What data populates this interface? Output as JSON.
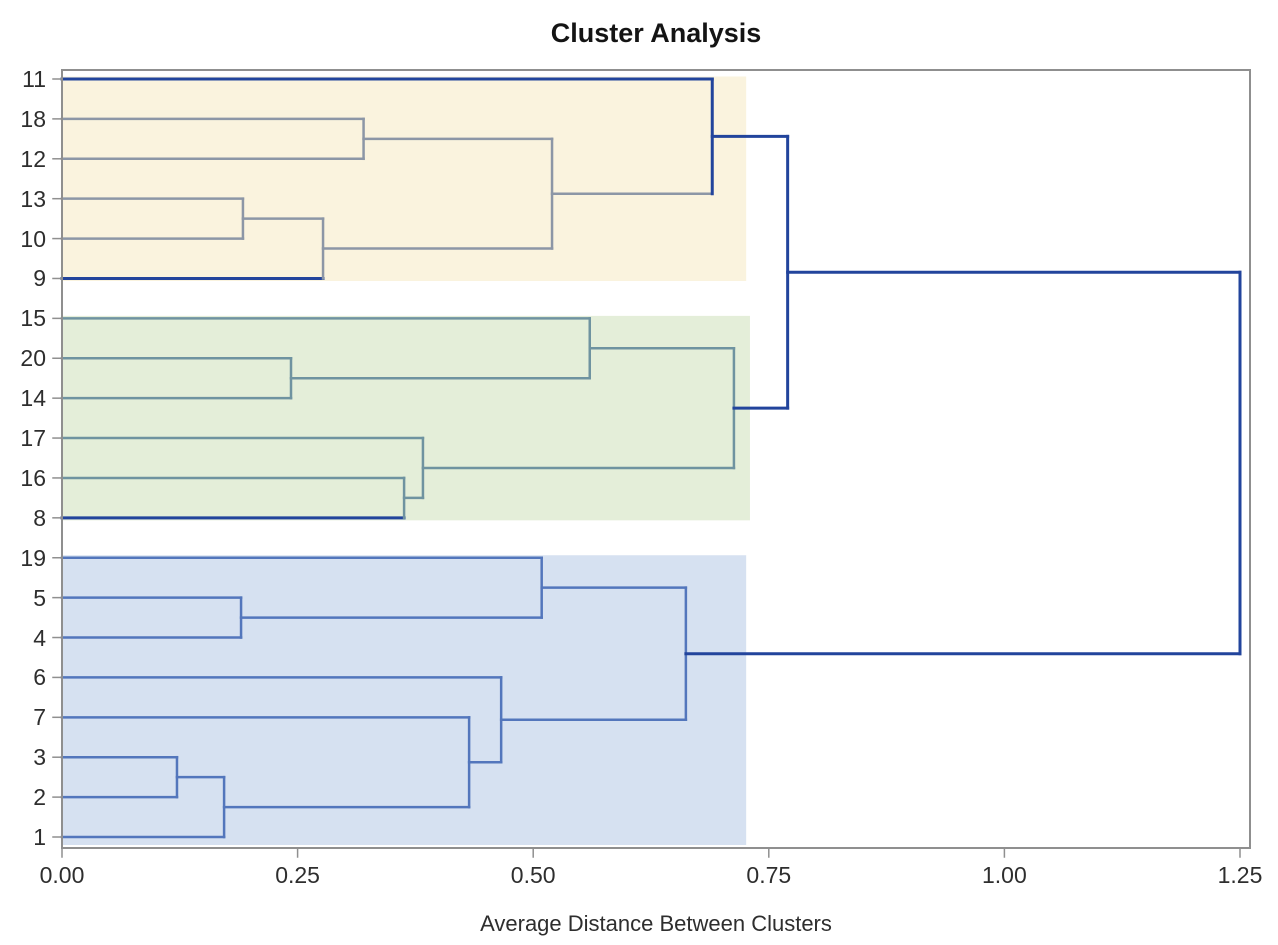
{
  "chart_data": {
    "type": "dendrogram",
    "title": "Cluster Analysis",
    "xlabel": "Average Distance Between Clusters",
    "x_axis": {
      "tick_labels": [
        "0.00",
        "0.25",
        "0.50",
        "0.75",
        "1.00",
        "1.25"
      ],
      "tick_values": [
        0,
        0.25,
        0.5,
        0.75,
        1.0,
        1.25
      ],
      "range": [
        0,
        1.25
      ],
      "grid": false
    },
    "leaf_order": [
      "11",
      "18",
      "12",
      "13",
      "10",
      "9",
      "15",
      "20",
      "14",
      "17",
      "16",
      "8",
      "19",
      "5",
      "4",
      "6",
      "7",
      "3",
      "2",
      "1"
    ],
    "leaf_line_colors": {
      "11": "navy",
      "18": "gray",
      "12": "gray",
      "13": "gray",
      "10": "gray",
      "9": "navy",
      "15": "teal",
      "20": "teal",
      "14": "teal",
      "17": "teal",
      "16": "teal",
      "8": "navy",
      "19": "blue",
      "5": "blue",
      "4": "blue",
      "6": "blue",
      "7": "blue",
      "3": "blue",
      "2": "blue",
      "1": "blue"
    },
    "merges": [
      {
        "id": "A",
        "children": [
          "13",
          "10"
        ],
        "distance": 0.192,
        "line": "gray",
        "out": "gray"
      },
      {
        "id": "B",
        "children": [
          "A",
          "9"
        ],
        "distance": 0.277,
        "line": "gray",
        "out": "gray"
      },
      {
        "id": "C",
        "children": [
          "18",
          "12"
        ],
        "distance": 0.32,
        "line": "gray",
        "out": "gray"
      },
      {
        "id": "D",
        "children": [
          "C",
          "B"
        ],
        "distance": 0.52,
        "line": "gray",
        "out": "gray"
      },
      {
        "id": "E",
        "children": [
          "11",
          "D"
        ],
        "distance": 0.69,
        "line": "navy",
        "out": "navy"
      },
      {
        "id": "F",
        "children": [
          "20",
          "14"
        ],
        "distance": 0.243,
        "line": "teal",
        "out": "teal"
      },
      {
        "id": "G",
        "children": [
          "16",
          "8"
        ],
        "distance": 0.363,
        "line": "teal",
        "out": "teal"
      },
      {
        "id": "H",
        "children": [
          "17",
          "G"
        ],
        "distance": 0.383,
        "line": "teal",
        "out": "teal"
      },
      {
        "id": "I",
        "children": [
          "15",
          "F"
        ],
        "distance": 0.56,
        "line": "teal",
        "out": "teal"
      },
      {
        "id": "J",
        "children": [
          "I",
          "H"
        ],
        "distance": 0.713,
        "line": "teal",
        "out": "navy"
      },
      {
        "id": "K",
        "children": [
          "3",
          "2"
        ],
        "distance": 0.122,
        "line": "blue",
        "out": "blue"
      },
      {
        "id": "L",
        "children": [
          "K",
          "1"
        ],
        "distance": 0.172,
        "line": "blue",
        "out": "blue"
      },
      {
        "id": "M",
        "children": [
          "5",
          "4"
        ],
        "distance": 0.19,
        "line": "blue",
        "out": "blue"
      },
      {
        "id": "N",
        "children": [
          "7",
          "L"
        ],
        "distance": 0.432,
        "line": "blue",
        "out": "blue"
      },
      {
        "id": "O",
        "children": [
          "6",
          "N"
        ],
        "distance": 0.466,
        "line": "blue",
        "out": "blue"
      },
      {
        "id": "P",
        "children": [
          "19",
          "M"
        ],
        "distance": 0.509,
        "line": "blue",
        "out": "blue"
      },
      {
        "id": "Q",
        "children": [
          "P",
          "O"
        ],
        "distance": 0.662,
        "line": "blue",
        "out": "navy"
      },
      {
        "id": "R",
        "children": [
          "E",
          "J"
        ],
        "distance": 0.77,
        "line": "navy",
        "out": "navy"
      },
      {
        "id": "S",
        "children": [
          "R",
          "Q"
        ],
        "distance": 1.25,
        "line": "navy",
        "out": null
      }
    ],
    "clusters": [
      {
        "id": "cluster-1",
        "leaves": [
          "11",
          "18",
          "12",
          "13",
          "10",
          "9"
        ],
        "band_color": "#FAF3DE",
        "band_right": 0.726
      },
      {
        "id": "cluster-2",
        "leaves": [
          "15",
          "20",
          "14",
          "17",
          "16",
          "8"
        ],
        "band_color": "#E4EED9",
        "band_right": 0.73
      },
      {
        "id": "cluster-3",
        "leaves": [
          "19",
          "5",
          "4",
          "6",
          "7",
          "3",
          "2",
          "1"
        ],
        "band_color": "#D6E1F1",
        "band_right": 0.726
      }
    ],
    "line_colors": {
      "navy": "#22449C",
      "gray": "#8C96A6",
      "teal": "#6F93A0",
      "blue": "#5376BC"
    },
    "frame_color": "#8F8F8F"
  }
}
